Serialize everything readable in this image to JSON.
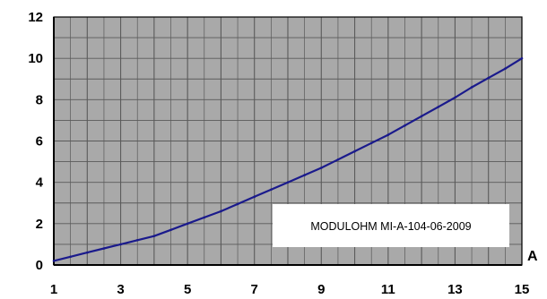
{
  "chart_data": {
    "type": "line",
    "xlabel": "A",
    "xlim": [
      1,
      15
    ],
    "ylim": [
      0,
      12
    ],
    "x_ticks": [
      1,
      3,
      5,
      7,
      9,
      11,
      13,
      15
    ],
    "y_ticks": [
      0,
      2,
      4,
      6,
      8,
      10,
      12
    ],
    "x_minor_step": 0.5,
    "y_minor_step": 1,
    "grid": true,
    "colors": {
      "plot_background": "#a9a9a9",
      "grid": "#5a5a5a",
      "line": "#1a1a8c"
    },
    "series": [
      {
        "x": [
          1.0,
          1.5,
          2,
          2.5,
          3,
          3.5,
          4,
          4.5,
          5,
          5.5,
          6,
          6.5,
          7,
          7.5,
          8,
          8.5,
          9,
          9.5,
          10,
          10.5,
          11,
          11.5,
          12,
          12.5,
          13,
          13.5,
          14,
          14.5,
          15
        ],
        "y": [
          0.2,
          0.4,
          0.6,
          0.8,
          1.0,
          1.2,
          1.4,
          1.7,
          2.0,
          2.3,
          2.6,
          2.95,
          3.3,
          3.65,
          4.0,
          4.35,
          4.7,
          5.1,
          5.5,
          5.9,
          6.3,
          6.75,
          7.2,
          7.65,
          8.1,
          8.6,
          9.05,
          9.5,
          10.0
        ]
      }
    ],
    "annotation": "MODULOHM MI-A-104-06-2009"
  }
}
